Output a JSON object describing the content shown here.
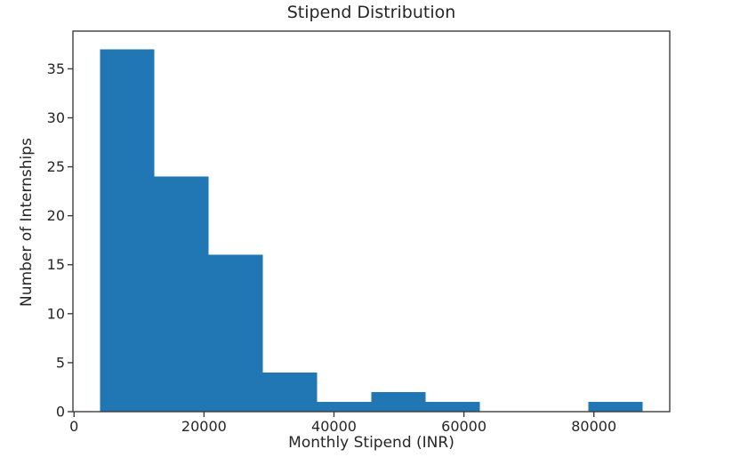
{
  "chart_data": {
    "type": "bar",
    "subtype": "histogram",
    "title": "Stipend Distribution",
    "xlabel": "Monthly Stipend (INR)",
    "ylabel": "Number of Internships",
    "bin_edges": [
      4000,
      12350,
      20700,
      29050,
      37400,
      45750,
      54100,
      62450,
      70800,
      79150,
      87500
    ],
    "counts": [
      37,
      24,
      16,
      4,
      1,
      2,
      1,
      0,
      0,
      1
    ],
    "xticks": [
      0,
      20000,
      40000,
      60000,
      80000
    ],
    "xtick_labels": [
      "0",
      "20000",
      "40000",
      "60000",
      "80000"
    ],
    "yticks": [
      0,
      5,
      10,
      15,
      20,
      25,
      30,
      35
    ],
    "ytick_labels": [
      "0",
      "5",
      "10",
      "15",
      "20",
      "25",
      "30",
      "35"
    ],
    "xlim": [
      -175,
      91675
    ],
    "ylim": [
      0,
      38.85
    ],
    "grid": false,
    "legend": null,
    "bar_color": "#2176b4",
    "axis_color": "#3d3d3d",
    "text_color": "#262626"
  }
}
